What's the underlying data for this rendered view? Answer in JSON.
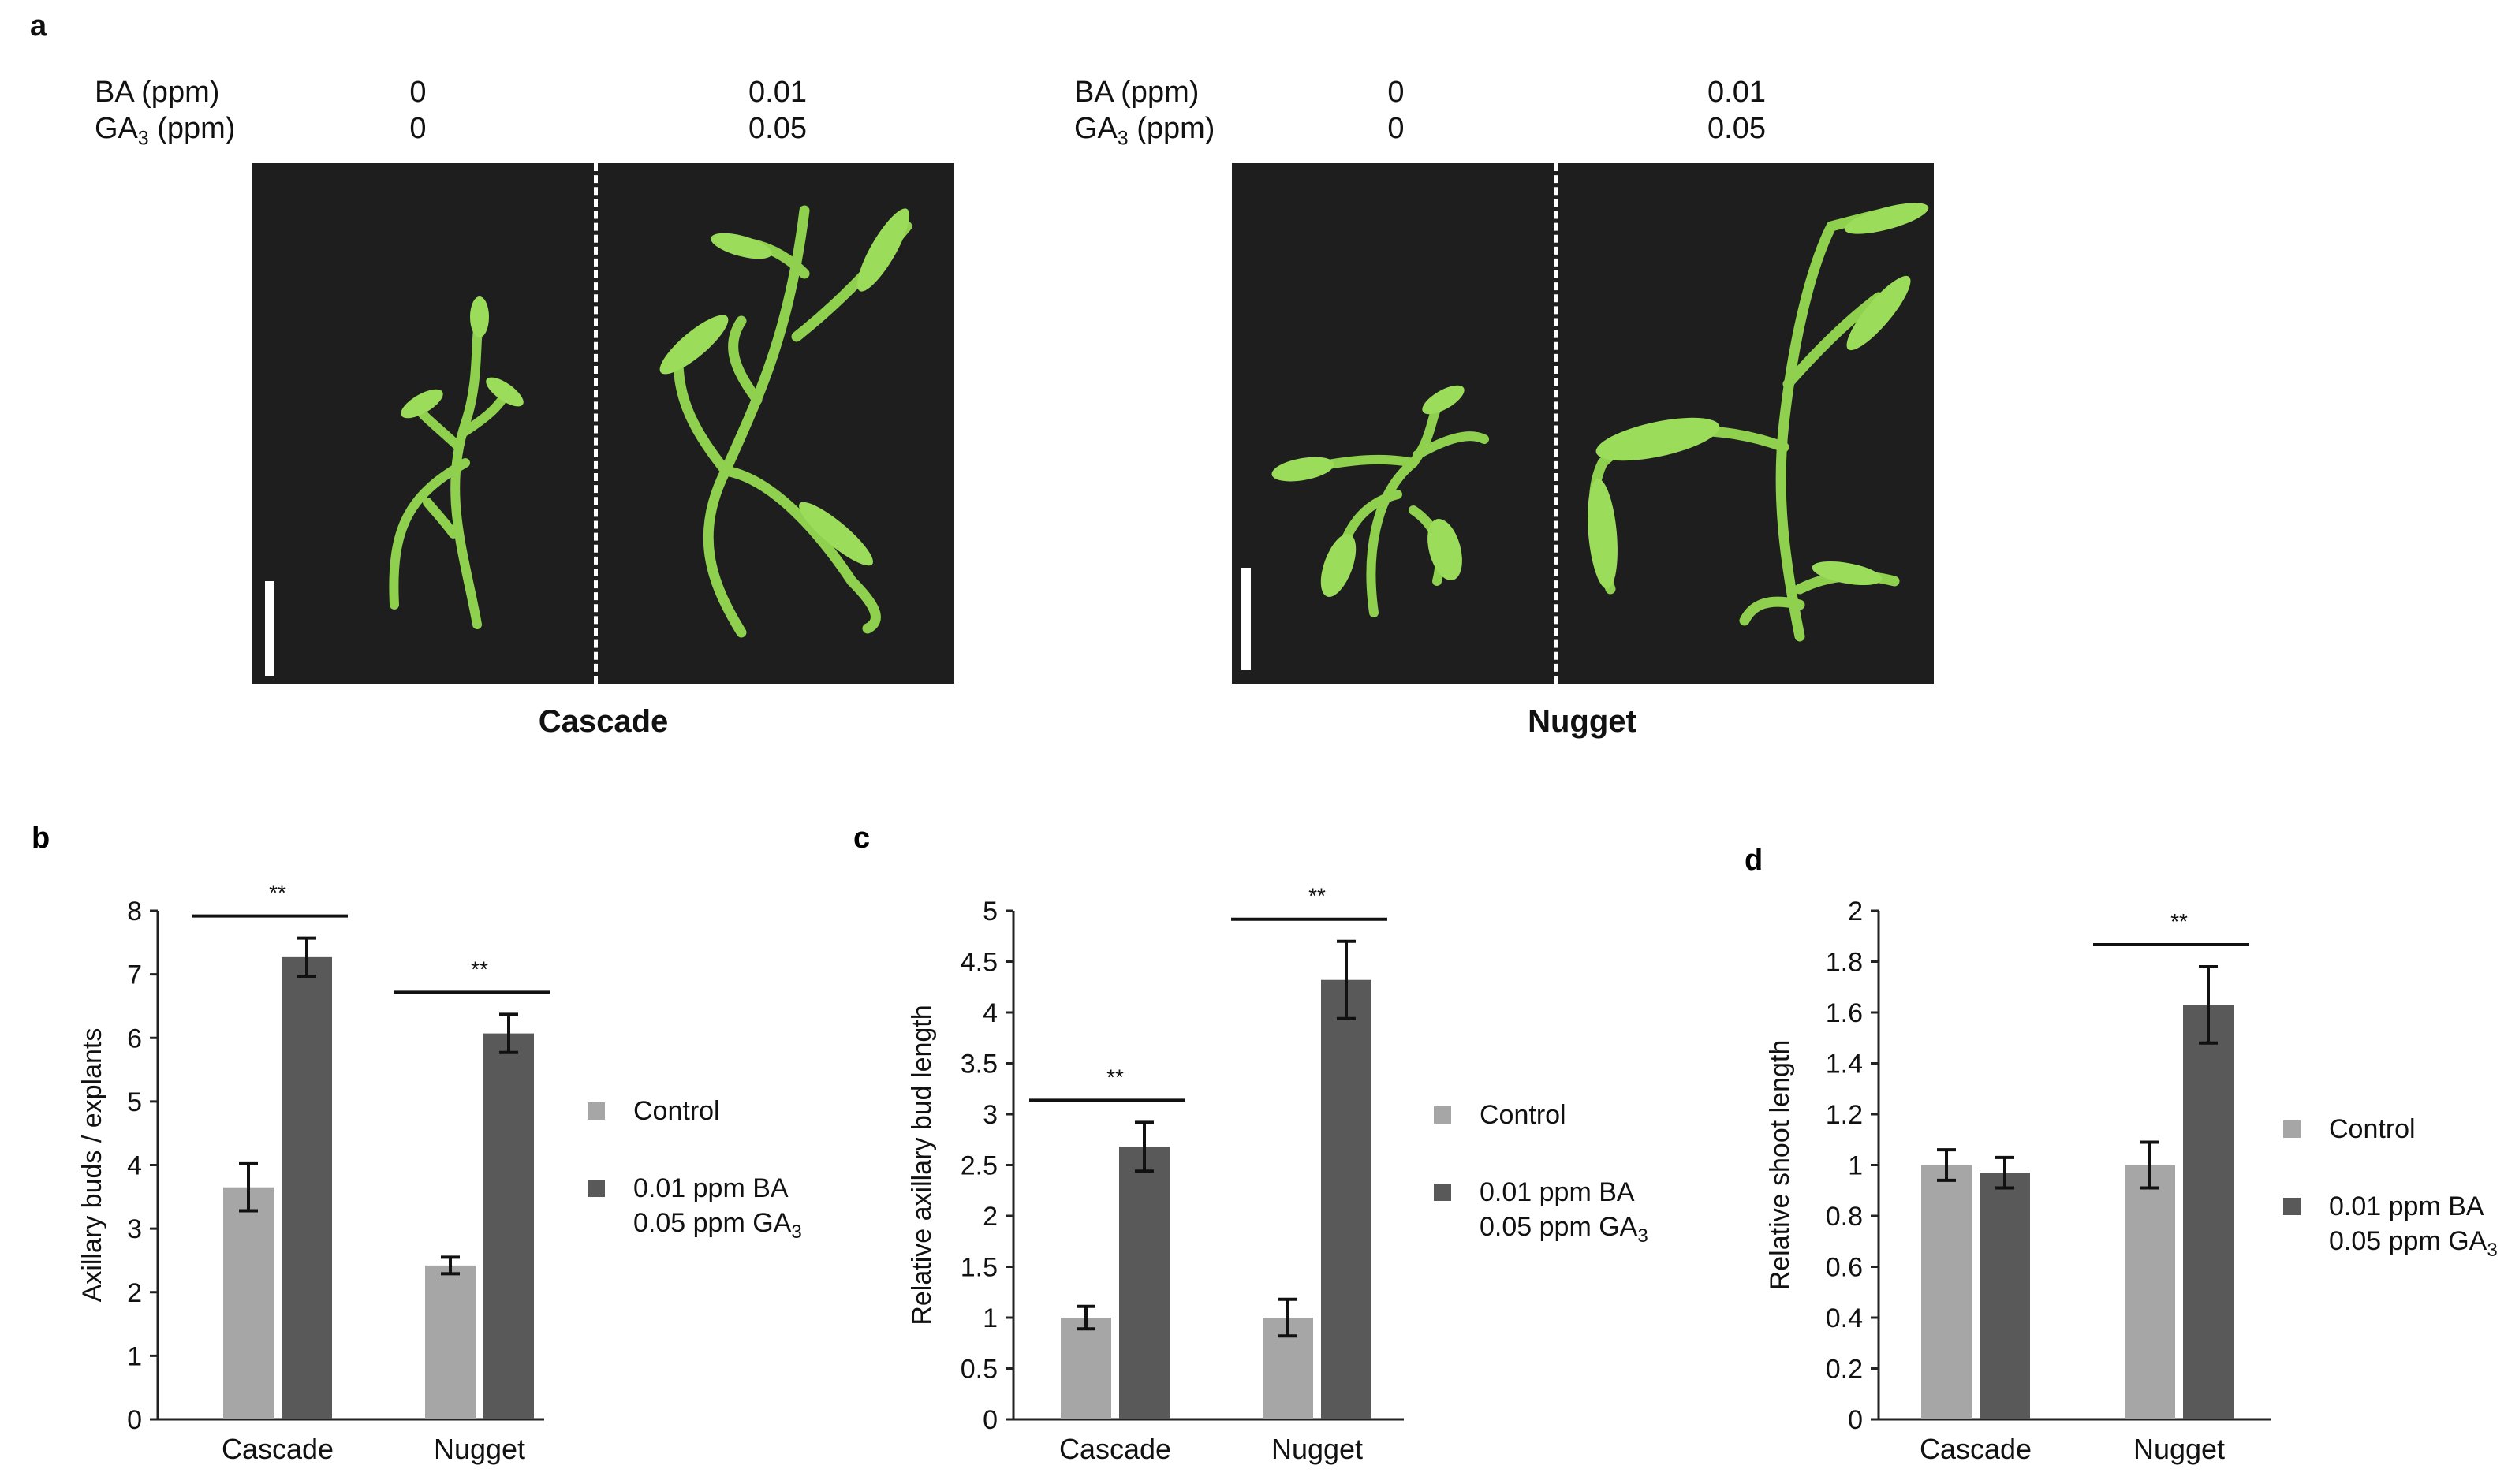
{
  "panel_a": {
    "letter": "a",
    "groups": [
      {
        "cultivar": "Cascade",
        "ba_label": "BA (ppm)",
        "ga_label_prefix": "GA",
        "ga_label_sub": "3",
        "ga_label_suffix": " (ppm)",
        "control": {
          "ba": "0",
          "ga": "0"
        },
        "treated": {
          "ba": "0.01",
          "ga": "0.05"
        }
      },
      {
        "cultivar": "Nugget",
        "ba_label": "BA (ppm)",
        "ga_label_prefix": "GA",
        "ga_label_sub": "3",
        "ga_label_suffix": " (ppm)",
        "control": {
          "ba": "0",
          "ga": "0"
        },
        "treated": {
          "ba": "0.01",
          "ga": "0.05"
        }
      }
    ]
  },
  "colors": {
    "control": "#a6a6a6",
    "treated": "#595959",
    "plant": "#8fd14f",
    "photo_bg": "#1e1e1e"
  },
  "legend": {
    "control": "Control",
    "treated_line1": "0.01 ppm BA",
    "treated_line2_prefix": "0.05 ppm GA",
    "treated_line2_sub": "3"
  },
  "chart_data": [
    {
      "id": "b",
      "type": "bar",
      "panel_letter": "b",
      "categories": [
        "Cascade",
        "Nugget"
      ],
      "ylabel": "Axillary buds / explants",
      "ylim": [
        0,
        8
      ],
      "yticks": [
        "0",
        "1",
        "2",
        "3",
        "4",
        "5",
        "6",
        "7",
        "8"
      ],
      "tickStep": 1,
      "series": [
        {
          "name": "Control",
          "values": [
            3.65,
            2.42
          ],
          "errors": [
            0.37,
            0.13
          ]
        },
        {
          "name": "0.01 ppm BA 0.05 ppm GA3",
          "values": [
            7.27,
            6.07
          ],
          "errors": [
            0.3,
            0.3
          ]
        }
      ],
      "significance": [
        "**",
        "**"
      ],
      "legend_position": "right"
    },
    {
      "id": "c",
      "type": "bar",
      "panel_letter": "c",
      "categories": [
        "Cascade",
        "Nugget"
      ],
      "ylabel": "Relative axillary bud length",
      "ylim": [
        0,
        5
      ],
      "yticks": [
        "0",
        "0.5",
        "1",
        "1.5",
        "2",
        "2.5",
        "3",
        "3.5",
        "4",
        "4.5",
        "5"
      ],
      "tickStep": 0.5,
      "series": [
        {
          "name": "Control",
          "values": [
            1.0,
            1.0
          ],
          "errors": [
            0.11,
            0.18
          ]
        },
        {
          "name": "0.01 ppm BA 0.05 ppm GA3",
          "values": [
            2.68,
            4.32
          ],
          "errors": [
            0.24,
            0.38
          ]
        }
      ],
      "significance": [
        "**",
        "**"
      ],
      "legend_position": "right"
    },
    {
      "id": "d",
      "type": "bar",
      "panel_letter": "d",
      "categories": [
        "Cascade",
        "Nugget"
      ],
      "ylabel": "Relative shoot length",
      "ylim": [
        0,
        2
      ],
      "yticks": [
        "0",
        "0.2",
        "0.4",
        "0.6",
        "0.8",
        "1",
        "1.2",
        "1.4",
        "1.6",
        "1.8",
        "2"
      ],
      "tickStep": 0.2,
      "series": [
        {
          "name": "Control",
          "values": [
            1.0,
            1.0
          ],
          "errors": [
            0.06,
            0.09
          ]
        },
        {
          "name": "0.01 ppm BA 0.05 ppm GA3",
          "values": [
            0.97,
            1.63
          ],
          "errors": [
            0.06,
            0.15
          ]
        }
      ],
      "significance": [
        "",
        "**"
      ],
      "legend_position": "right"
    }
  ]
}
